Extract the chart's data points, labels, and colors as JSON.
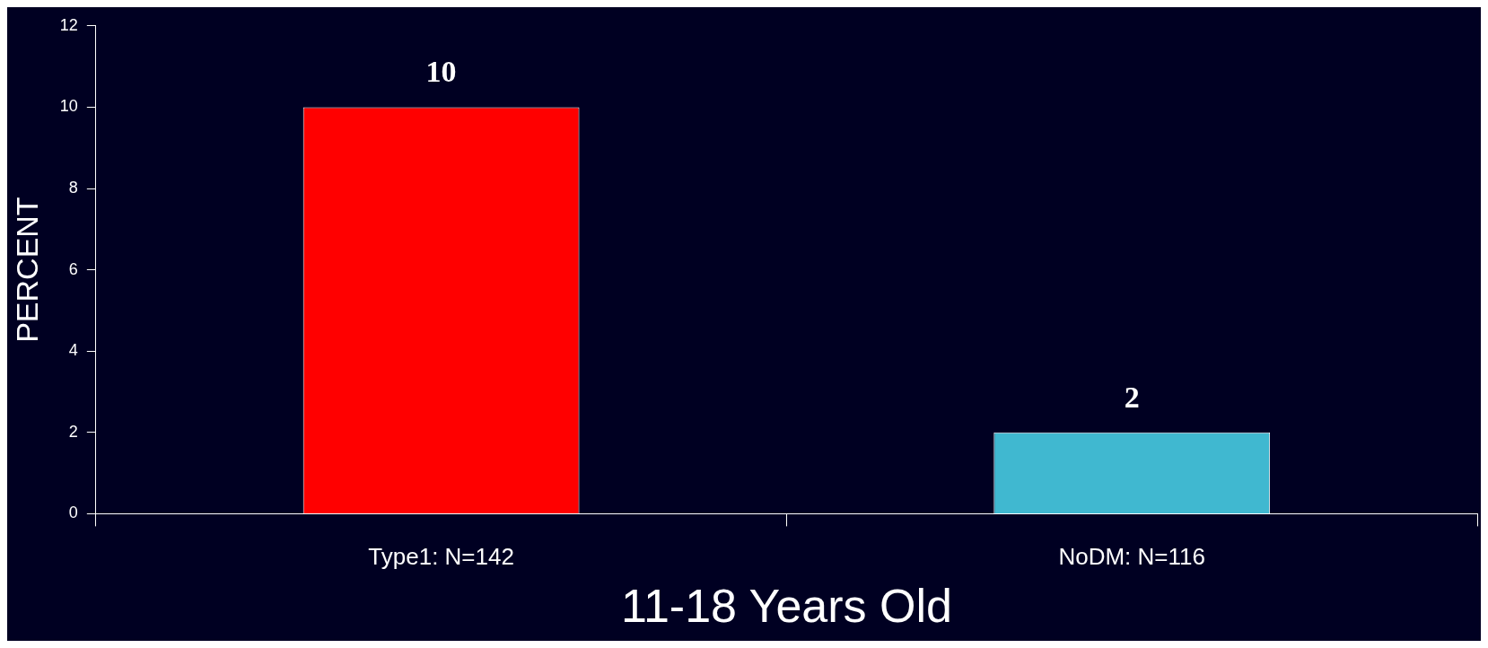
{
  "chart_data": {
    "type": "bar",
    "xlabel": "11-18 Years Old",
    "ylabel": "PERCENT",
    "categories": [
      "Type1: N=142",
      "NoDM: N=116"
    ],
    "values": [
      10,
      2
    ],
    "colors": [
      "#ff0000",
      "#40b8d0"
    ],
    "ylim": [
      0,
      12
    ],
    "yticks": [
      0,
      2,
      4,
      6,
      8,
      10,
      12
    ],
    "grid": false,
    "legend": false,
    "data_labels": true
  }
}
